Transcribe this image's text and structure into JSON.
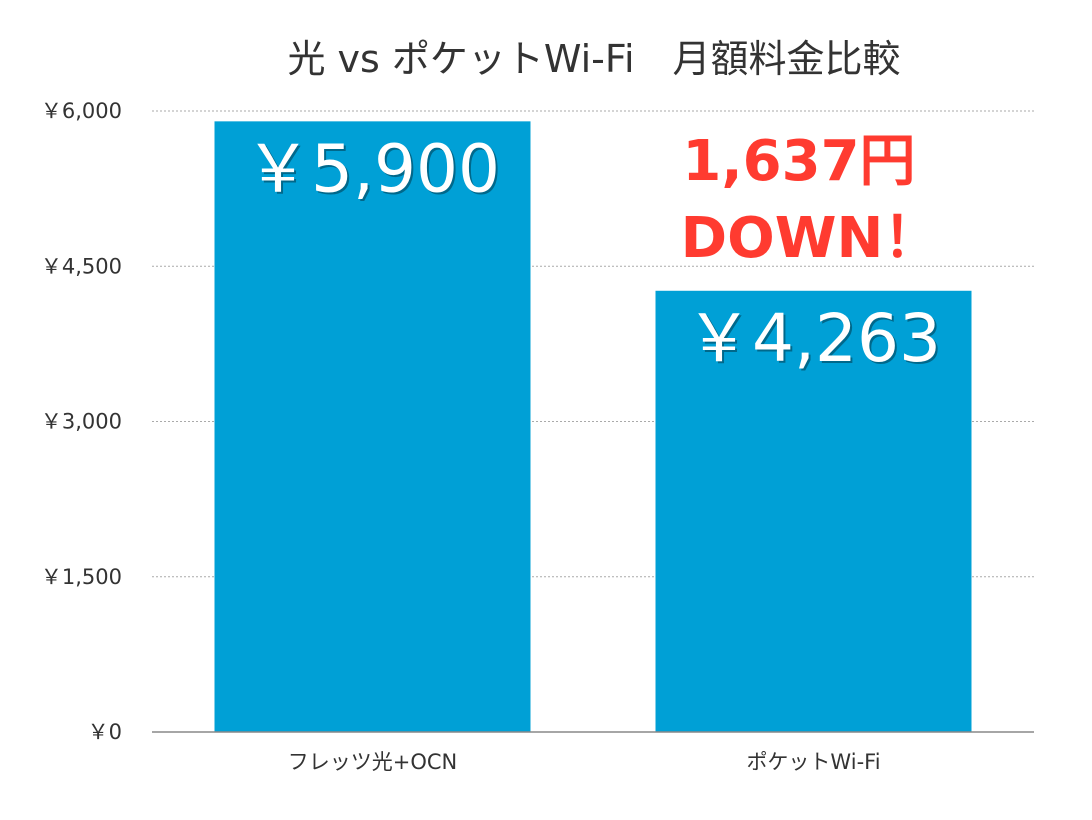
{
  "chart_data": {
    "type": "bar",
    "title": "光 vs ポケットWi-Fi　月額料金比較",
    "xlabel": "",
    "ylabel": "",
    "categories": [
      "フレッツ光+OCN",
      "ポケットWi-Fi"
    ],
    "series": [
      {
        "values": [
          5900,
          4263
        ],
        "data_labels": [
          "￥5,900",
          "￥4,263"
        ]
      }
    ],
    "ylim": [
      0,
      6000
    ],
    "yticks": [
      0,
      1500,
      3000,
      4500,
      6000
    ],
    "ytick_labels": [
      "￥0",
      "￥1,500",
      "￥3,000",
      "￥4,500",
      "￥6,000"
    ],
    "grid": true,
    "legend": "none",
    "colors": {
      "bar": "#00A0D6",
      "annotation": "#FF3B30",
      "grid": "#AAAAAA"
    },
    "annotation": {
      "lines": [
        "1,637円",
        "DOWN！"
      ]
    }
  }
}
